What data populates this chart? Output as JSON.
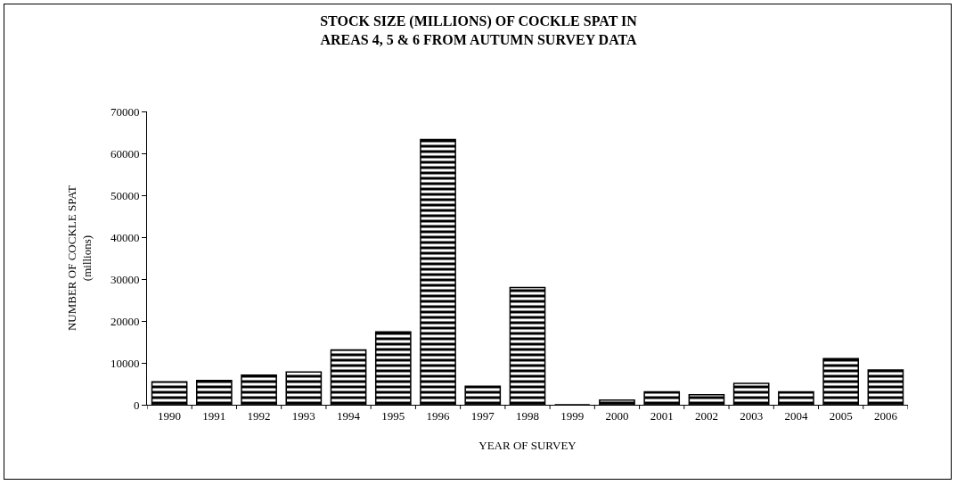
{
  "chart_data": {
    "type": "bar",
    "title": "STOCK SIZE (MILLIONS) OF COCKLE SPAT IN\nAREAS 4, 5 & 6 FROM AUTUMN SURVEY DATA",
    "xlabel": "YEAR OF SURVEY",
    "ylabel": "NUMBER OF COCKLE SPAT\n(millions)",
    "categories": [
      "1990",
      "1991",
      "1992",
      "1993",
      "1994",
      "1995",
      "1996",
      "1997",
      "1998",
      "1999",
      "2000",
      "2001",
      "2002",
      "2003",
      "2004",
      "2005",
      "2006"
    ],
    "values": [
      5500,
      5800,
      7100,
      7800,
      13100,
      17400,
      63300,
      4400,
      28000,
      0,
      1100,
      3100,
      2400,
      5100,
      3100,
      11000,
      8300
    ],
    "color": "#000000",
    "ylim": [
      0,
      70000
    ],
    "yticks": [
      0,
      10000,
      20000,
      30000,
      40000,
      50000,
      60000,
      70000
    ],
    "grid": false,
    "legend": false
  }
}
